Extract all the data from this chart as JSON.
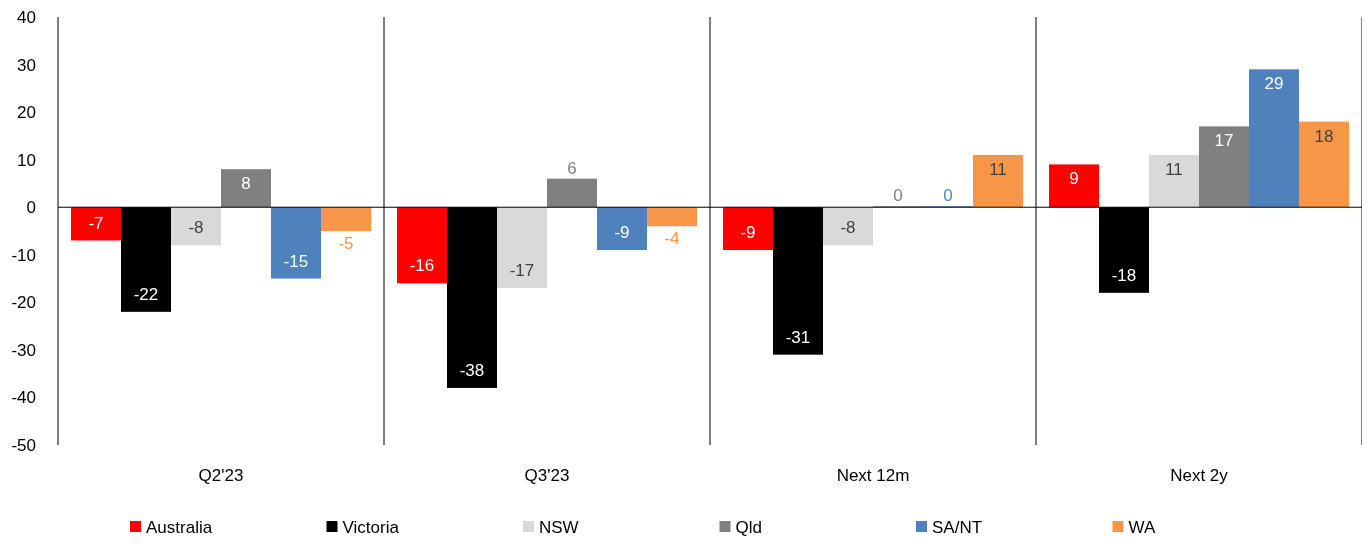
{
  "chart_data": {
    "type": "bar",
    "categories": [
      "Q2'23",
      "Q3'23",
      "Next 12m",
      "Next 2y"
    ],
    "series": [
      {
        "name": "Australia",
        "color": "#ff0000",
        "values": [
          -7,
          -16,
          -9,
          9
        ]
      },
      {
        "name": "Victoria",
        "color": "#000000",
        "values": [
          -22,
          -38,
          -31,
          -18
        ]
      },
      {
        "name": "NSW",
        "color": "#d9d9d9",
        "values": [
          -8,
          -17,
          -8,
          11
        ]
      },
      {
        "name": "Qld",
        "color": "#808080",
        "values": [
          8,
          6,
          0,
          17
        ]
      },
      {
        "name": "SA/NT",
        "color": "#4f81bd",
        "values": [
          -15,
          -9,
          0,
          29
        ]
      },
      {
        "name": "WA",
        "color": "#f79646",
        "values": [
          -5,
          -4,
          11,
          18
        ]
      }
    ],
    "ylim": [
      -50,
      40
    ],
    "yticks": [
      -50,
      -40,
      -30,
      -20,
      -10,
      0,
      10,
      20,
      30,
      40
    ],
    "data_labels": true,
    "legend": "bottom"
  }
}
